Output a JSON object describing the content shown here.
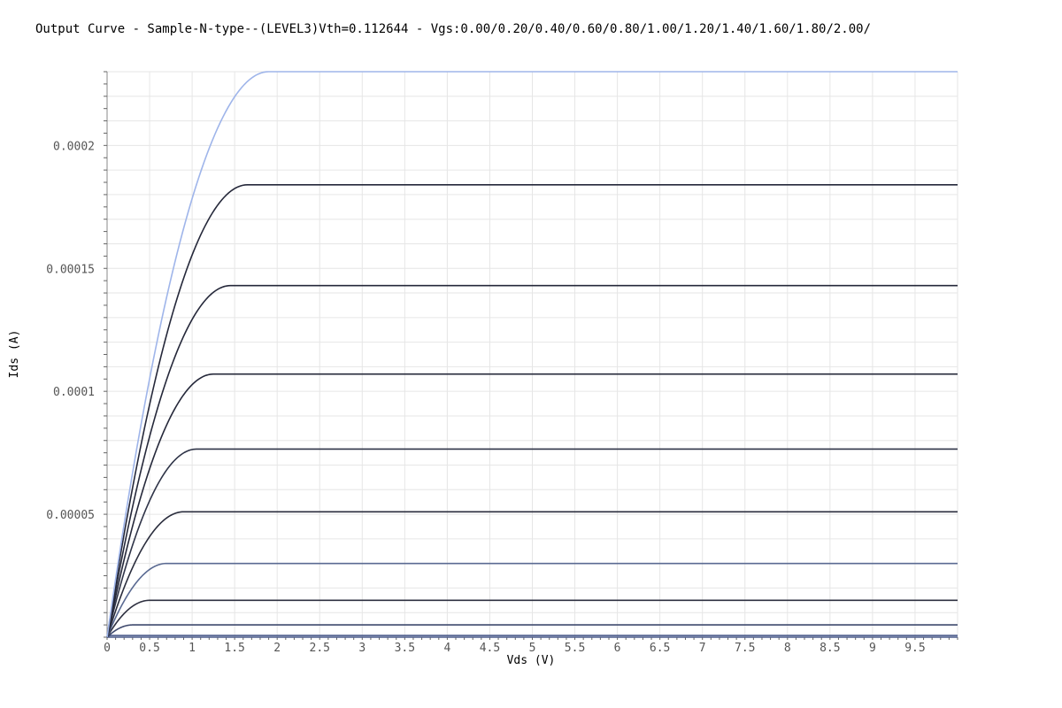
{
  "chart_data": {
    "type": "line",
    "title": "Output Curve - Sample-N-type--(LEVEL3)Vth=0.112644 - Vgs:0.00/0.20/0.40/0.60/0.80/1.00/1.20/1.40/1.60/1.80/2.00/",
    "xlabel": "Vds (V)",
    "ylabel": "Ids (A)",
    "xlim": [
      0,
      10
    ],
    "ylim": [
      0,
      0.00023
    ],
    "x_ticks": [
      0,
      0.5,
      1,
      1.5,
      2,
      2.5,
      3,
      3.5,
      4,
      4.5,
      5,
      5.5,
      6,
      6.5,
      7,
      7.5,
      8,
      8.5,
      9,
      9.5
    ],
    "x_tick_labels": [
      "0",
      "0.5",
      "1",
      "1.5",
      "2",
      "2.5",
      "3",
      "3.5",
      "4",
      "4.5",
      "5",
      "5.5",
      "6",
      "6.5",
      "7",
      "7.5",
      "8",
      "8.5",
      "9",
      "9.5"
    ],
    "y_ticks": [
      5e-05,
      0.0001,
      0.00015,
      0.0002
    ],
    "y_tick_labels": [
      "0.00005",
      "0.0001",
      "0.00015",
      "0.0002"
    ],
    "grid": true,
    "legend": "none",
    "series": [
      {
        "vgs": 0.0,
        "vdsat": 0.0,
        "isat": 0.0,
        "color": "#4a5a8a"
      },
      {
        "vgs": 0.2,
        "vdsat": 0.05,
        "isat": 7e-07,
        "color": "#4a5a8a"
      },
      {
        "vgs": 0.4,
        "vdsat": 0.3,
        "isat": 5e-06,
        "color": "#3f4a6e"
      },
      {
        "vgs": 0.6,
        "vdsat": 0.5,
        "isat": 1.5e-05,
        "color": "#2e3040"
      },
      {
        "vgs": 0.8,
        "vdsat": 0.7,
        "isat": 3e-05,
        "color": "#5a6a92"
      },
      {
        "vgs": 1.0,
        "vdsat": 0.9,
        "isat": 5.1e-05,
        "color": "#2a2d3d"
      },
      {
        "vgs": 1.2,
        "vdsat": 1.05,
        "isat": 7.65e-05,
        "color": "#2f3448"
      },
      {
        "vgs": 1.4,
        "vdsat": 1.25,
        "isat": 0.000107,
        "color": "#25283a"
      },
      {
        "vgs": 1.6,
        "vdsat": 1.45,
        "isat": 0.000143,
        "color": "#25283a"
      },
      {
        "vgs": 1.8,
        "vdsat": 1.65,
        "isat": 0.000184,
        "color": "#25283a"
      },
      {
        "vgs": 2.0,
        "vdsat": 1.9,
        "isat": 0.00023,
        "color": "#9fb5ea"
      }
    ]
  }
}
